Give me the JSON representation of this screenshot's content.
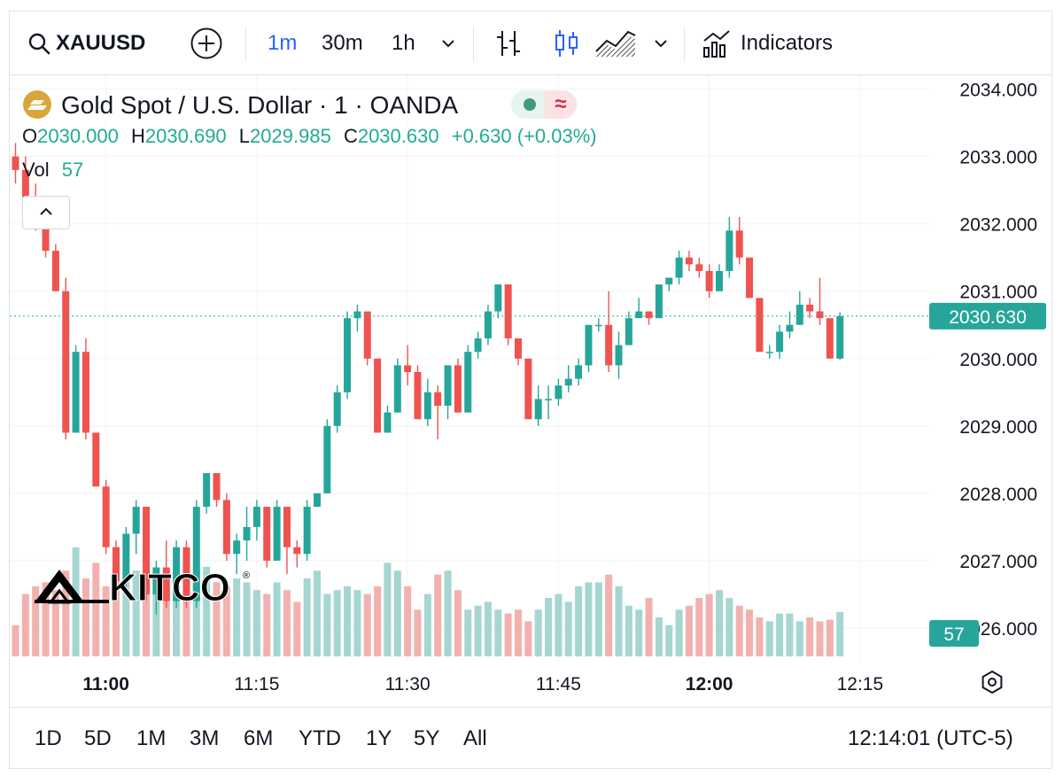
{
  "toolbar": {
    "symbol": "XAUUSD",
    "intervals": [
      "1m",
      "30m",
      "1h"
    ],
    "active_interval": "1m",
    "indicators_label": "Indicators"
  },
  "legend": {
    "title": "Gold Spot / U.S. Dollar · 1 · OANDA",
    "badge_icon": "approx-icon",
    "o_label": "O",
    "o_value": "2030.000",
    "h_label": "H",
    "h_value": "2030.690",
    "l_label": "L",
    "l_value": "2029.985",
    "c_label": "C",
    "c_value": "2030.630",
    "change": "+0.630 (+0.03%)",
    "vol_label": "Vol",
    "vol_value": "57"
  },
  "watermark": "KITCO",
  "price_axis": {
    "ticks": [
      "2034.000",
      "2033.000",
      "2032.000",
      "2031.000",
      "2030.000",
      "2029.000",
      "2028.000",
      "2027.000",
      "2026.000"
    ],
    "current_price": "2030.630",
    "current_volume": "57"
  },
  "time_axis": {
    "ticks": [
      {
        "label": "11:00",
        "bold": true
      },
      {
        "label": "11:15",
        "bold": false
      },
      {
        "label": "11:30",
        "bold": false
      },
      {
        "label": "11:45",
        "bold": false
      },
      {
        "label": "12:00",
        "bold": true
      },
      {
        "label": "12:15",
        "bold": false
      }
    ]
  },
  "ranges": [
    "1D",
    "5D",
    "1M",
    "3M",
    "6M",
    "YTD",
    "1Y",
    "5Y",
    "All"
  ],
  "clock": "12:14:01 (UTC-5)",
  "colors": {
    "up": "#26a69a",
    "down": "#ef5350",
    "up_vol": "#a5d6d2",
    "down_vol": "#f2b1ae",
    "blue": "#2962ff"
  },
  "chart_data": {
    "type": "candlestick",
    "ylim": [
      2025.5,
      2034.1
    ],
    "interval": "1m",
    "candles": [
      {
        "o": 2033.0,
        "h": 2033.2,
        "l": 2032.6,
        "c": 2032.8
      },
      {
        "o": 2032.8,
        "h": 2033.0,
        "l": 2032.3,
        "c": 2032.4
      },
      {
        "o": 2032.4,
        "h": 2032.6,
        "l": 2031.9,
        "c": 2032.0
      },
      {
        "o": 2032.0,
        "h": 2032.2,
        "l": 2031.5,
        "c": 2031.6
      },
      {
        "o": 2031.6,
        "h": 2031.7,
        "l": 2031.0,
        "c": 2031.0
      },
      {
        "o": 2031.0,
        "h": 2031.2,
        "l": 2028.8,
        "c": 2028.9
      },
      {
        "o": 2028.9,
        "h": 2030.2,
        "l": 2028.9,
        "c": 2030.1
      },
      {
        "o": 2030.1,
        "h": 2030.3,
        "l": 2028.8,
        "c": 2028.9
      },
      {
        "o": 2028.9,
        "h": 2028.9,
        "l": 2028.1,
        "c": 2028.1
      },
      {
        "o": 2028.1,
        "h": 2028.2,
        "l": 2027.1,
        "c": 2027.2
      },
      {
        "o": 2027.2,
        "h": 2027.3,
        "l": 2026.6,
        "c": 2026.7
      },
      {
        "o": 2026.7,
        "h": 2027.5,
        "l": 2026.5,
        "c": 2027.4
      },
      {
        "o": 2027.4,
        "h": 2027.9,
        "l": 2027.1,
        "c": 2027.8
      },
      {
        "o": 2027.8,
        "h": 2027.8,
        "l": 2026.4,
        "c": 2026.5
      },
      {
        "o": 2026.5,
        "h": 2027.0,
        "l": 2026.2,
        "c": 2026.9
      },
      {
        "o": 2026.9,
        "h": 2027.3,
        "l": 2026.3,
        "c": 2026.4
      },
      {
        "o": 2026.4,
        "h": 2027.3,
        "l": 2026.3,
        "c": 2027.2
      },
      {
        "o": 2027.2,
        "h": 2027.3,
        "l": 2026.3,
        "c": 2026.4
      },
      {
        "o": 2026.4,
        "h": 2027.9,
        "l": 2026.3,
        "c": 2027.8
      },
      {
        "o": 2027.8,
        "h": 2028.3,
        "l": 2027.7,
        "c": 2028.3
      },
      {
        "o": 2028.3,
        "h": 2028.3,
        "l": 2027.8,
        "c": 2027.9
      },
      {
        "o": 2027.9,
        "h": 2028.0,
        "l": 2027.0,
        "c": 2027.1
      },
      {
        "o": 2027.1,
        "h": 2027.4,
        "l": 2026.8,
        "c": 2027.3
      },
      {
        "o": 2027.3,
        "h": 2027.8,
        "l": 2027.0,
        "c": 2027.5
      },
      {
        "o": 2027.5,
        "h": 2027.9,
        "l": 2027.3,
        "c": 2027.8
      },
      {
        "o": 2027.8,
        "h": 2027.8,
        "l": 2026.9,
        "c": 2027.0
      },
      {
        "o": 2027.0,
        "h": 2027.9,
        "l": 2027.0,
        "c": 2027.8
      },
      {
        "o": 2027.8,
        "h": 2027.8,
        "l": 2026.8,
        "c": 2027.2
      },
      {
        "o": 2027.2,
        "h": 2027.3,
        "l": 2026.9,
        "c": 2027.1
      },
      {
        "o": 2027.1,
        "h": 2027.9,
        "l": 2027.0,
        "c": 2027.8
      },
      {
        "o": 2027.8,
        "h": 2028.0,
        "l": 2027.8,
        "c": 2028.0
      },
      {
        "o": 2028.0,
        "h": 2029.1,
        "l": 2028.0,
        "c": 2029.0
      },
      {
        "o": 2029.0,
        "h": 2029.6,
        "l": 2028.9,
        "c": 2029.5
      },
      {
        "o": 2029.5,
        "h": 2030.7,
        "l": 2029.4,
        "c": 2030.6
      },
      {
        "o": 2030.6,
        "h": 2030.8,
        "l": 2030.4,
        "c": 2030.7
      },
      {
        "o": 2030.7,
        "h": 2030.7,
        "l": 2029.9,
        "c": 2030.0
      },
      {
        "o": 2030.0,
        "h": 2030.0,
        "l": 2028.9,
        "c": 2028.9
      },
      {
        "o": 2028.9,
        "h": 2029.3,
        "l": 2028.9,
        "c": 2029.2
      },
      {
        "o": 2029.2,
        "h": 2030.0,
        "l": 2029.2,
        "c": 2029.9
      },
      {
        "o": 2029.9,
        "h": 2030.2,
        "l": 2029.6,
        "c": 2029.8
      },
      {
        "o": 2029.8,
        "h": 2029.9,
        "l": 2029.1,
        "c": 2029.1
      },
      {
        "o": 2029.1,
        "h": 2029.7,
        "l": 2029.0,
        "c": 2029.5
      },
      {
        "o": 2029.5,
        "h": 2029.6,
        "l": 2028.8,
        "c": 2029.3
      },
      {
        "o": 2029.3,
        "h": 2029.9,
        "l": 2029.1,
        "c": 2029.9
      },
      {
        "o": 2029.9,
        "h": 2030.0,
        "l": 2029.2,
        "c": 2029.2
      },
      {
        "o": 2029.2,
        "h": 2030.2,
        "l": 2029.2,
        "c": 2030.1
      },
      {
        "o": 2030.1,
        "h": 2030.4,
        "l": 2030.0,
        "c": 2030.3
      },
      {
        "o": 2030.3,
        "h": 2030.8,
        "l": 2030.2,
        "c": 2030.7
      },
      {
        "o": 2030.7,
        "h": 2031.1,
        "l": 2030.6,
        "c": 2031.1
      },
      {
        "o": 2031.1,
        "h": 2031.1,
        "l": 2030.2,
        "c": 2030.3
      },
      {
        "o": 2030.3,
        "h": 2030.3,
        "l": 2029.9,
        "c": 2030.0
      },
      {
        "o": 2030.0,
        "h": 2030.0,
        "l": 2029.1,
        "c": 2029.1
      },
      {
        "o": 2029.1,
        "h": 2029.6,
        "l": 2029.0,
        "c": 2029.4
      },
      {
        "o": 2029.4,
        "h": 2029.6,
        "l": 2029.1,
        "c": 2029.4
      },
      {
        "o": 2029.4,
        "h": 2029.7,
        "l": 2029.3,
        "c": 2029.6
      },
      {
        "o": 2029.6,
        "h": 2029.9,
        "l": 2029.5,
        "c": 2029.7
      },
      {
        "o": 2029.7,
        "h": 2030.0,
        "l": 2029.6,
        "c": 2029.9
      },
      {
        "o": 2029.9,
        "h": 2030.5,
        "l": 2029.8,
        "c": 2030.5
      },
      {
        "o": 2030.5,
        "h": 2030.6,
        "l": 2030.4,
        "c": 2030.5
      },
      {
        "o": 2030.5,
        "h": 2031.0,
        "l": 2029.8,
        "c": 2029.9
      },
      {
        "o": 2029.9,
        "h": 2030.4,
        "l": 2029.7,
        "c": 2030.2
      },
      {
        "o": 2030.2,
        "h": 2030.7,
        "l": 2030.2,
        "c": 2030.6
      },
      {
        "o": 2030.6,
        "h": 2030.9,
        "l": 2030.6,
        "c": 2030.7
      },
      {
        "o": 2030.7,
        "h": 2030.7,
        "l": 2030.5,
        "c": 2030.6
      },
      {
        "o": 2030.6,
        "h": 2031.1,
        "l": 2030.6,
        "c": 2031.1
      },
      {
        "o": 2031.1,
        "h": 2031.2,
        "l": 2031.0,
        "c": 2031.2
      },
      {
        "o": 2031.2,
        "h": 2031.6,
        "l": 2031.1,
        "c": 2031.5
      },
      {
        "o": 2031.5,
        "h": 2031.6,
        "l": 2031.3,
        "c": 2031.4
      },
      {
        "o": 2031.4,
        "h": 2031.5,
        "l": 2031.2,
        "c": 2031.3
      },
      {
        "o": 2031.3,
        "h": 2031.4,
        "l": 2030.9,
        "c": 2031.0
      },
      {
        "o": 2031.0,
        "h": 2031.4,
        "l": 2031.0,
        "c": 2031.3
      },
      {
        "o": 2031.3,
        "h": 2032.1,
        "l": 2031.2,
        "c": 2031.9
      },
      {
        "o": 2031.9,
        "h": 2032.1,
        "l": 2031.4,
        "c": 2031.5
      },
      {
        "o": 2031.5,
        "h": 2031.5,
        "l": 2030.9,
        "c": 2030.9
      },
      {
        "o": 2030.9,
        "h": 2030.9,
        "l": 2030.1,
        "c": 2030.1
      },
      {
        "o": 2030.1,
        "h": 2030.2,
        "l": 2030.0,
        "c": 2030.1
      },
      {
        "o": 2030.1,
        "h": 2030.5,
        "l": 2030.0,
        "c": 2030.4
      },
      {
        "o": 2030.4,
        "h": 2030.7,
        "l": 2030.3,
        "c": 2030.5
      },
      {
        "o": 2030.5,
        "h": 2031.0,
        "l": 2030.5,
        "c": 2030.8
      },
      {
        "o": 2030.8,
        "h": 2030.9,
        "l": 2030.6,
        "c": 2030.7
      },
      {
        "o": 2030.7,
        "h": 2031.2,
        "l": 2030.5,
        "c": 2030.6
      },
      {
        "o": 2030.6,
        "h": 2030.6,
        "l": 2030.0,
        "c": 2030.0
      },
      {
        "o": 2030.0,
        "h": 2030.69,
        "l": 2029.985,
        "c": 2030.63
      }
    ],
    "volume_ylim": [
      0,
      200
    ],
    "volumes": [
      40,
      80,
      90,
      95,
      85,
      110,
      140,
      100,
      120,
      90,
      130,
      100,
      110,
      95,
      105,
      90,
      100,
      80,
      110,
      115,
      95,
      90,
      100,
      95,
      85,
      80,
      95,
      85,
      70,
      100,
      110,
      80,
      85,
      90,
      85,
      80,
      90,
      120,
      110,
      90,
      60,
      80,
      105,
      110,
      85,
      60,
      65,
      70,
      60,
      55,
      60,
      45,
      60,
      75,
      80,
      70,
      90,
      95,
      95,
      105,
      90,
      65,
      60,
      75,
      50,
      40,
      60,
      65,
      75,
      80,
      85,
      75,
      65,
      60,
      50,
      45,
      55,
      55,
      45,
      50,
      45,
      47,
      57
    ]
  }
}
